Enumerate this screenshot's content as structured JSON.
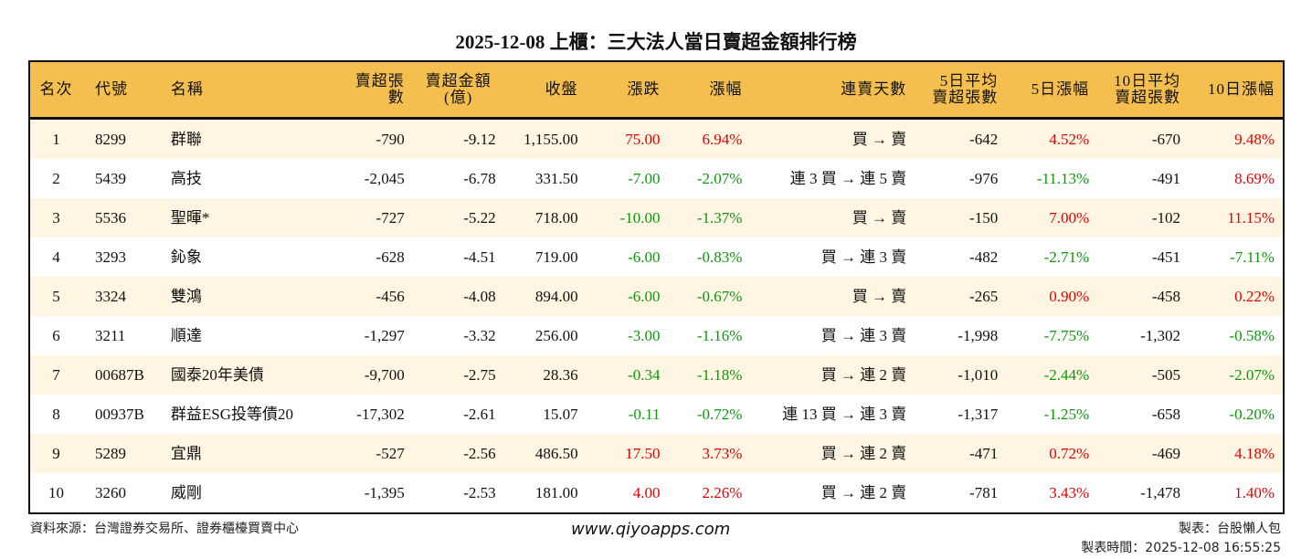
{
  "title": "2025-12-08 上櫃：三大法人當日賣超金額排行榜",
  "colors": {
    "header_bg": "#F5BF4F",
    "odd_row_bg": "#FEF5E2",
    "up": "#E60000",
    "down": "#0A9A0A"
  },
  "headers": [
    "名次",
    "代號",
    "名稱",
    "賣超張數",
    "賣超金額\n(億)",
    "收盤",
    "漲跌",
    "漲幅",
    "連賣天數",
    "5日平均\n賣超張數",
    "5日漲幅",
    "10日平均\n賣超張數",
    "10日漲幅"
  ],
  "rows": [
    [
      "1",
      "8299",
      "群聯",
      "-790",
      "-9.12",
      "1,155.00",
      "75.00",
      "6.94%",
      "買 → 賣",
      "-642",
      "4.52%",
      "-670",
      "9.48%"
    ],
    [
      "2",
      "5439",
      "高技",
      "-2,045",
      "-6.78",
      "331.50",
      "-7.00",
      "-2.07%",
      "連 3 買 → 連 5 賣",
      "-976",
      "-11.13%",
      "-491",
      "8.69%"
    ],
    [
      "3",
      "5536",
      "聖暉*",
      "-727",
      "-5.22",
      "718.00",
      "-10.00",
      "-1.37%",
      "買 → 賣",
      "-150",
      "7.00%",
      "-102",
      "11.15%"
    ],
    [
      "4",
      "3293",
      "鈊象",
      "-628",
      "-4.51",
      "719.00",
      "-6.00",
      "-0.83%",
      "買 → 連 3 賣",
      "-482",
      "-2.71%",
      "-451",
      "-7.11%"
    ],
    [
      "5",
      "3324",
      "雙鴻",
      "-456",
      "-4.08",
      "894.00",
      "-6.00",
      "-0.67%",
      "買 → 賣",
      "-265",
      "0.90%",
      "-458",
      "0.22%"
    ],
    [
      "6",
      "3211",
      "順達",
      "-1,297",
      "-3.32",
      "256.00",
      "-3.00",
      "-1.16%",
      "買 → 連 3 賣",
      "-1,998",
      "-7.75%",
      "-1,302",
      "-0.58%"
    ],
    [
      "7",
      "00687B",
      "國泰20年美債",
      "-9,700",
      "-2.75",
      "28.36",
      "-0.34",
      "-1.18%",
      "買 → 連 2 賣",
      "-1,010",
      "-2.44%",
      "-505",
      "-2.07%"
    ],
    [
      "8",
      "00937B",
      "群益ESG投等債20",
      "-17,302",
      "-2.61",
      "15.07",
      "-0.11",
      "-0.72%",
      "連 13 買 → 連 3 賣",
      "-1,317",
      "-1.25%",
      "-658",
      "-0.20%"
    ],
    [
      "9",
      "5289",
      "宜鼎",
      "-527",
      "-2.56",
      "486.50",
      "17.50",
      "3.73%",
      "買 → 連 2 賣",
      "-471",
      "0.72%",
      "-469",
      "4.18%"
    ],
    [
      "10",
      "3260",
      "威剛",
      "-1,395",
      "-2.53",
      "181.00",
      "4.00",
      "2.26%",
      "買 → 連 2 賣",
      "-781",
      "3.43%",
      "-1,478",
      "1.40%"
    ]
  ],
  "footer": {
    "source": "資料來源：台灣證券交易所、證券櫃檯買賣中心",
    "site": "www.qiyoapps.com",
    "author": "製表：台股懶人包",
    "time": "製表時間：2025-12-08 16:55:25"
  }
}
